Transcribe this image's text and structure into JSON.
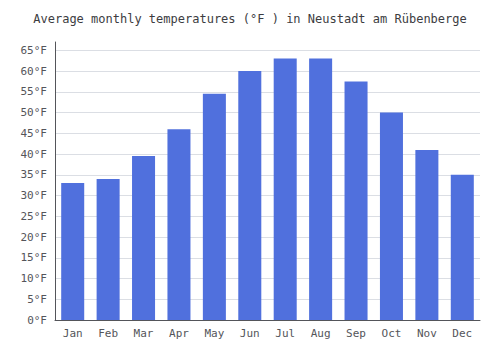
{
  "chart_data": {
    "type": "bar",
    "title": "Average monthly temperatures (°F ) in Neustadt am Rübenberge",
    "categories": [
      "Jan",
      "Feb",
      "Mar",
      "Apr",
      "May",
      "Jun",
      "Jul",
      "Aug",
      "Sep",
      "Oct",
      "Nov",
      "Dec"
    ],
    "values": [
      33,
      34,
      39.5,
      46,
      54.5,
      60,
      63,
      63,
      57.5,
      50,
      41,
      35
    ],
    "ylim": [
      0,
      67
    ],
    "yticks": [
      {
        "value": 0,
        "label": "0°F"
      },
      {
        "value": 5,
        "label": "5°F"
      },
      {
        "value": 10,
        "label": "10°F"
      },
      {
        "value": 15,
        "label": "15°F"
      },
      {
        "value": 20,
        "label": "20°F"
      },
      {
        "value": 25,
        "label": "25°F"
      },
      {
        "value": 30,
        "label": "30°F"
      },
      {
        "value": 35,
        "label": "35°F"
      },
      {
        "value": 40,
        "label": "40°F"
      },
      {
        "value": 45,
        "label": "45°F"
      },
      {
        "value": 50,
        "label": "50°F"
      },
      {
        "value": 55,
        "label": "55°F"
      },
      {
        "value": 60,
        "label": "60°F"
      },
      {
        "value": 65,
        "label": "65°F"
      }
    ],
    "grid": true
  }
}
